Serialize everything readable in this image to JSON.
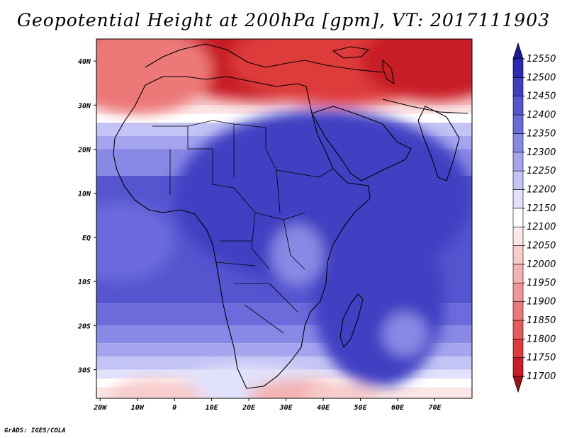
{
  "title": "Geopotential Height at 200hPa [gpm], VT: 2017111903",
  "credit": "GrADS: IGES/COLA",
  "map": {
    "lon_range": [
      -21,
      80
    ],
    "lat_range": [
      -36.5,
      45
    ],
    "lon_ticks": [
      "20W",
      "10W",
      "0",
      "10E",
      "20E",
      "30E",
      "40E",
      "50E",
      "60E",
      "70E"
    ],
    "lon_tick_values": [
      -20,
      -10,
      0,
      10,
      20,
      30,
      40,
      50,
      60,
      70
    ],
    "lat_ticks": [
      "40N",
      "30N",
      "20N",
      "10N",
      "EQ",
      "10S",
      "20S",
      "30S"
    ],
    "lat_tick_values": [
      40,
      30,
      20,
      10,
      0,
      -10,
      -20,
      -30
    ]
  },
  "colorbar": {
    "levels": [
      "11700",
      "11750",
      "11800",
      "11850",
      "11900",
      "11950",
      "12000",
      "12050",
      "12100",
      "12150",
      "12200",
      "12250",
      "12300",
      "12350",
      "12400",
      "12450",
      "12500",
      "12550"
    ],
    "colors": [
      "#a50f15",
      "#c81d25",
      "#de3a3a",
      "#e65a5a",
      "#ec7878",
      "#f09696",
      "#f4b2b2",
      "#f8cccc",
      "#fce6e6",
      "#ffffff",
      "#e1e1fb",
      "#c3c3f5",
      "#a5a5ef",
      "#8888e6",
      "#6b6bdc",
      "#5555d0",
      "#3f3fc2",
      "#2a2ab3",
      "#1a1a9a"
    ]
  }
}
